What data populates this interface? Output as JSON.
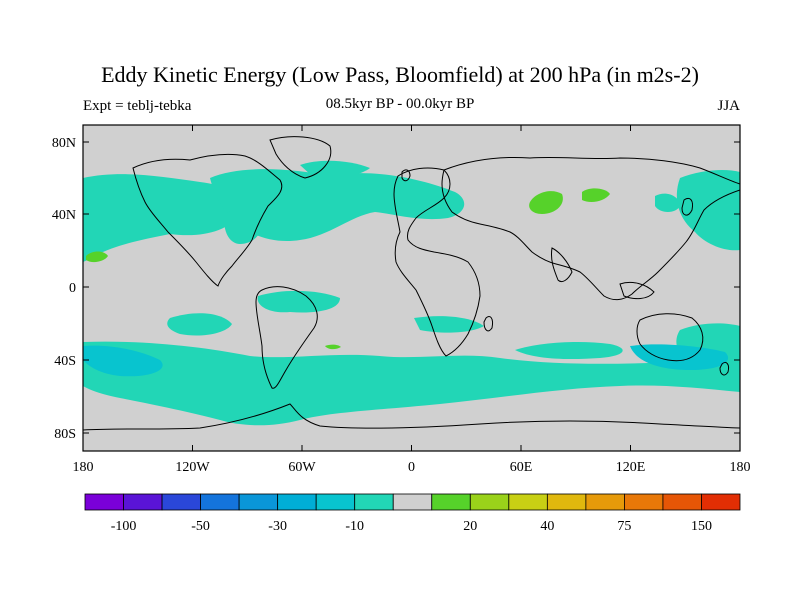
{
  "title": "Eddy Kinetic Energy (Low Pass, Bloomfield) at 200 hPa (in m2s-2)",
  "subtitle_left": "Expt = teblj-tebka",
  "subtitle_center": "08.5kyr BP - 00.0kyr BP",
  "subtitle_right": "JJA",
  "lat_labels": [
    "80N",
    "40N",
    "0",
    "40S",
    "80S"
  ],
  "lon_labels": [
    "180",
    "120W",
    "60W",
    "0",
    "60E",
    "120E",
    "180"
  ],
  "colorbar": {
    "colors": [
      "#7a00d9",
      "#5a14d6",
      "#2a47d9",
      "#1474dc",
      "#0a96d8",
      "#00aed6",
      "#08c4cf",
      "#22d6b6",
      "#d0d0d0",
      "#56d22a",
      "#9ad21a",
      "#c8d014",
      "#e0b80e",
      "#e69a0a",
      "#e87808",
      "#e65606",
      "#e22e04"
    ],
    "labels": [
      "-100",
      "-50",
      "-30",
      "-10",
      "20",
      "40",
      "75",
      "150"
    ]
  },
  "colors": {
    "land_sea_background": "#d0d0d0",
    "negative_fill": "#22d6b6",
    "strong_negative_fill": "#08c4cf",
    "positive_fill": "#56d22a",
    "coastline": "#000000"
  }
}
